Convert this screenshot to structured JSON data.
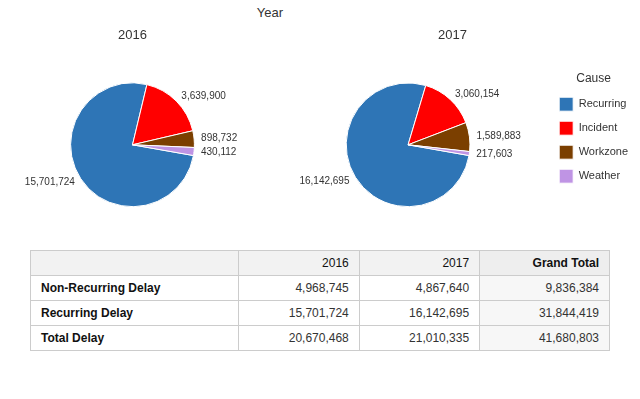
{
  "title": "Year",
  "legend": "right",
  "legend_title": "Cause",
  "chart_data": [
    {
      "type": "pie",
      "title": "2016",
      "categories": [
        "Recurring",
        "Incident",
        "Workzone",
        "Weather"
      ],
      "values": [
        15701724,
        3639900,
        898732,
        430112
      ],
      "value_labels": [
        "15,701,724",
        "3,639,900",
        "898,732",
        "430,112"
      ],
      "colors": [
        "#2E75B6",
        "#FF0000",
        "#7B3F00",
        "#BF94E4"
      ],
      "data_labels": true
    },
    {
      "type": "pie",
      "title": "2017",
      "categories": [
        "Recurring",
        "Incident",
        "Workzone",
        "Weather"
      ],
      "values": [
        16142695,
        3060154,
        1589883,
        217603
      ],
      "value_labels": [
        "16,142,695",
        "3,060,154",
        "1,589,883",
        "217,603"
      ],
      "colors": [
        "#2E75B6",
        "#FF0000",
        "#7B3F00",
        "#BF94E4"
      ],
      "data_labels": true
    }
  ],
  "table": {
    "columns": [
      "2016",
      "2017",
      "Grand Total"
    ],
    "rows": [
      {
        "name": "Non-Recurring Delay",
        "values": [
          4968745,
          4867640,
          9836384
        ],
        "value_labels": [
          "4,968,745",
          "4,867,640",
          "9,836,384"
        ]
      },
      {
        "name": "Recurring Delay",
        "values": [
          15701724,
          16142695,
          31844419
        ],
        "value_labels": [
          "15,701,724",
          "16,142,695",
          "31,844,419"
        ]
      },
      {
        "name": "Total Delay",
        "values": [
          20670468,
          21010335,
          41680803
        ],
        "value_labels": [
          "20,670,468",
          "21,010,335",
          "41,680,803"
        ]
      }
    ]
  }
}
